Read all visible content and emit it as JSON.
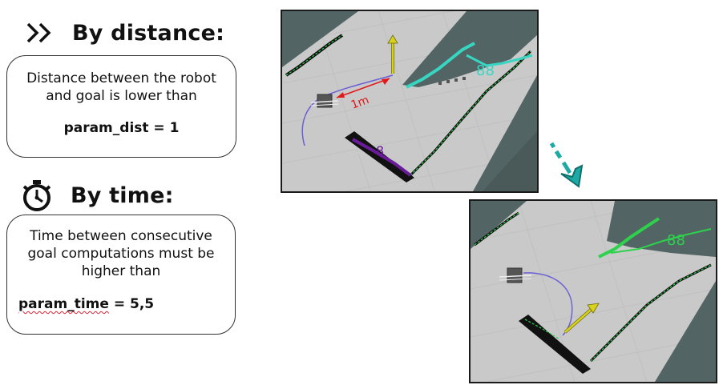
{
  "distance": {
    "icon": "double-chevron-right-icon",
    "title": "By distance:",
    "description": "Distance between the robot and goal is lower than",
    "param": "param_dist = 1"
  },
  "time": {
    "icon": "stopwatch-icon",
    "title": "By time:",
    "description": "Time between consecutive goal computations must be higher than",
    "param_name": "param_time",
    "param_value": " = 5,5"
  },
  "screenshot_top": {
    "distance_label": "1m",
    "colors": {
      "floor": "#cdcdcd",
      "wall": "#526463",
      "goal_arrow": "#d9d21a",
      "cyan_scan": "#37d6c2",
      "purple_scan": "#6a1b9a",
      "distance_line": "#e01818",
      "path": "#6b5fd6"
    }
  },
  "screenshot_bottom": {
    "colors": {
      "floor": "#cdcdcd",
      "wall": "#526463",
      "goal_arrow": "#d9d21a",
      "green_scan": "#2ed14c",
      "path": "#6b5fd6"
    }
  },
  "transition_arrow": {
    "icon": "dashed-arrow-down-right-icon",
    "color": "#1fa9a4"
  }
}
